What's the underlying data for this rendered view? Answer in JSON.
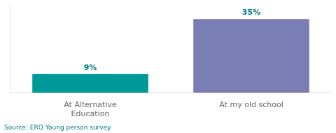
{
  "chart_data": {
    "type": "bar",
    "categories": [
      "At Alternative\nEducation",
      "At my old school"
    ],
    "values": [
      9,
      35
    ],
    "value_labels": [
      "9%",
      "35%"
    ],
    "colors": [
      "#009999",
      "#7b7db5"
    ],
    "data_labels": true,
    "annotations": [
      "Source: ERO Young person survey"
    ],
    "ylim": [
      0,
      42
    ],
    "grid": false,
    "tick_labels": "x"
  }
}
